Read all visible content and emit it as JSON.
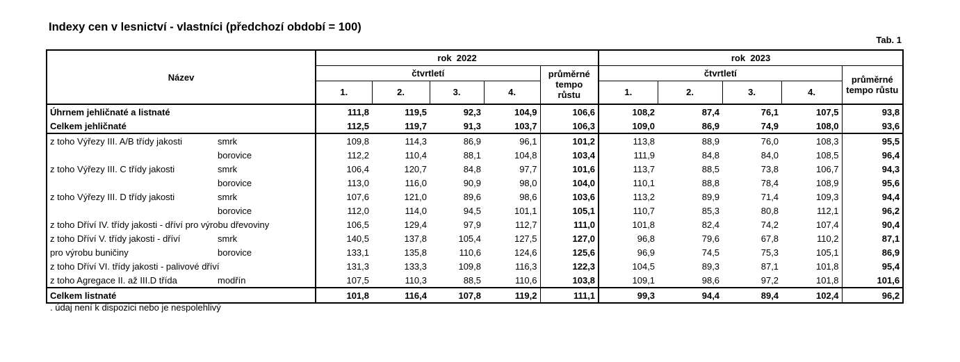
{
  "page_title": "Indexy cen v lesnictví - vlastníci (předchozí období = 100)",
  "tab_label": "Tab. 1",
  "footnote": ". údaj není k dispozici nebo je nespolehlivý",
  "table": {
    "name_header": "Název",
    "years": [
      {
        "label": "rok  2022",
        "quarters_label": "čtvrtletí",
        "quarters": [
          "1.",
          "2.",
          "3.",
          "4."
        ],
        "avg_label": "průměrné tempo růstu"
      },
      {
        "label": "rok  2023",
        "quarters_label": "čtvrtletí",
        "quarters": [
          "1.",
          "2.",
          "3.",
          "4."
        ],
        "avg_label": "průměrné tempo růstu"
      }
    ],
    "rows": [
      {
        "label": "Úhrnem jehličnaté a listnaté",
        "species": null,
        "bold": true,
        "sep": false,
        "q2022": [
          "111,8",
          "119,5",
          "92,3",
          "104,9"
        ],
        "avg2022": "106,6",
        "q2023": [
          "108,2",
          "87,4",
          "76,1",
          "107,5"
        ],
        "avg2023": "93,8"
      },
      {
        "label": "Celkem jehličnaté",
        "species": null,
        "bold": true,
        "sep": false,
        "q2022": [
          "112,5",
          "119,7",
          "91,3",
          "103,7"
        ],
        "avg2022": "106,3",
        "q2023": [
          "109,0",
          "86,9",
          "74,9",
          "108,0"
        ],
        "avg2023": "93,6"
      },
      {
        "label": "z toho Výřezy III. A/B třídy jakosti",
        "species": "smrk",
        "bold": false,
        "sep": true,
        "q2022": [
          "109,8",
          "114,3",
          "86,9",
          "96,1"
        ],
        "avg2022": "101,2",
        "q2023": [
          "113,8",
          "88,9",
          "76,0",
          "108,3"
        ],
        "avg2023": "95,5"
      },
      {
        "label": "",
        "species": "borovice",
        "bold": false,
        "sep": false,
        "q2022": [
          "112,2",
          "110,4",
          "88,1",
          "104,8"
        ],
        "avg2022": "103,4",
        "q2023": [
          "111,9",
          "84,8",
          "84,0",
          "108,5"
        ],
        "avg2023": "96,4"
      },
      {
        "label": "z toho Výřezy III. C třídy jakosti",
        "species": "smrk",
        "bold": false,
        "sep": false,
        "q2022": [
          "106,4",
          "120,7",
          "84,8",
          "97,7"
        ],
        "avg2022": "101,6",
        "q2023": [
          "113,7",
          "88,5",
          "73,8",
          "106,7"
        ],
        "avg2023": "94,3"
      },
      {
        "label": "",
        "species": "borovice",
        "bold": false,
        "sep": false,
        "q2022": [
          "113,0",
          "116,0",
          "90,9",
          "98,0"
        ],
        "avg2022": "104,0",
        "q2023": [
          "110,1",
          "88,8",
          "78,4",
          "108,9"
        ],
        "avg2023": "95,6"
      },
      {
        "label": "z toho Výřezy III. D třídy jakosti",
        "species": "smrk",
        "bold": false,
        "sep": false,
        "q2022": [
          "107,6",
          "121,0",
          "89,6",
          "98,6"
        ],
        "avg2022": "103,6",
        "q2023": [
          "113,2",
          "89,9",
          "71,4",
          "109,3"
        ],
        "avg2023": "94,4"
      },
      {
        "label": "",
        "species": "borovice",
        "bold": false,
        "sep": false,
        "q2022": [
          "112,0",
          "114,0",
          "94,5",
          "101,1"
        ],
        "avg2022": "105,1",
        "q2023": [
          "110,7",
          "85,3",
          "80,8",
          "112,1"
        ],
        "avg2023": "96,2"
      },
      {
        "label": "z toho Dříví IV. třídy jakosti - dříví pro výrobu dřevoviny",
        "species": null,
        "bold": false,
        "sep": false,
        "q2022": [
          "106,5",
          "129,4",
          "97,9",
          "112,7"
        ],
        "avg2022": "111,0",
        "q2023": [
          "101,8",
          "82,4",
          "74,2",
          "107,4"
        ],
        "avg2023": "90,4"
      },
      {
        "label": "z toho Dříví V. třídy jakosti - dříví",
        "species": "smrk",
        "bold": false,
        "sep": false,
        "q2022": [
          "140,5",
          "137,8",
          "105,4",
          "127,5"
        ],
        "avg2022": "127,0",
        "q2023": [
          "96,8",
          "79,6",
          "67,8",
          "110,2"
        ],
        "avg2023": "87,1"
      },
      {
        "label": "pro výrobu buničiny",
        "species": "borovice",
        "bold": false,
        "sep": false,
        "q2022": [
          "133,1",
          "135,8",
          "110,6",
          "124,6"
        ],
        "avg2022": "125,6",
        "q2023": [
          "96,9",
          "74,5",
          "75,3",
          "105,1"
        ],
        "avg2023": "86,9"
      },
      {
        "label": "z toho Dříví VI. třídy jakosti - palivové dříví",
        "species": null,
        "bold": false,
        "sep": false,
        "q2022": [
          "131,3",
          "133,3",
          "109,8",
          "116,3"
        ],
        "avg2022": "122,3",
        "q2023": [
          "104,5",
          "89,3",
          "87,1",
          "101,8"
        ],
        "avg2023": "95,4"
      },
      {
        "label": "z toho Agregace II. až III.D třída",
        "species": "modřín",
        "bold": false,
        "sep": false,
        "q2022": [
          "107,5",
          "110,3",
          "88,5",
          "110,6"
        ],
        "avg2022": "103,8",
        "q2023": [
          "109,1",
          "98,6",
          "97,2",
          "101,8"
        ],
        "avg2023": "101,6"
      },
      {
        "label": "Celkem listnaté",
        "species": null,
        "bold": true,
        "sep": true,
        "q2022": [
          "101,8",
          "116,4",
          "107,8",
          "119,2"
        ],
        "avg2022": "111,1",
        "q2023": [
          "99,3",
          "94,4",
          "89,4",
          "102,4"
        ],
        "avg2023": "96,2"
      }
    ]
  }
}
